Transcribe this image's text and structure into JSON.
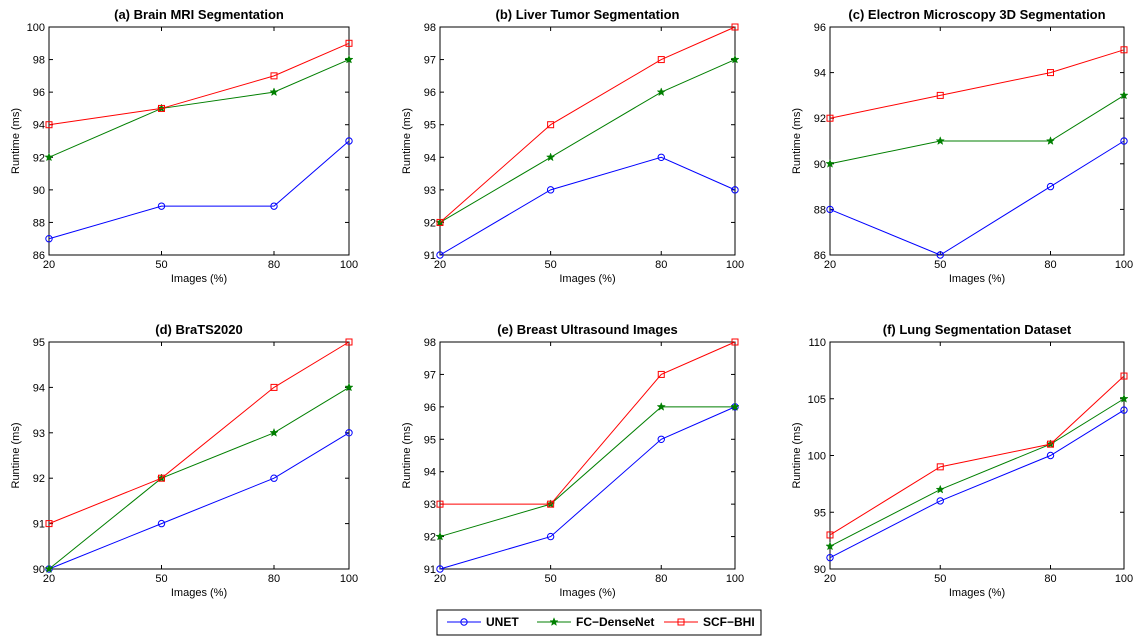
{
  "chart_data": [
    {
      "type": "line",
      "title": "(a) Brain MRI Segmentation",
      "xlabel": "Images (%)",
      "ylabel": "Runtime (ms)",
      "x": [
        20,
        50,
        80,
        100
      ],
      "xticks": [
        20,
        50,
        80,
        100
      ],
      "ylim": [
        86,
        100
      ],
      "yticks": [
        86,
        88,
        90,
        92,
        94,
        96,
        98,
        100
      ],
      "grid": false,
      "series": [
        {
          "name": "UNET",
          "values": [
            87,
            89,
            89,
            93
          ]
        },
        {
          "name": "FC−DenseNet",
          "values": [
            92,
            95,
            96,
            98
          ]
        },
        {
          "name": "SCF−BHI",
          "values": [
            94,
            95,
            97,
            99
          ]
        }
      ]
    },
    {
      "type": "line",
      "title": "(b) Liver Tumor Segmentation",
      "xlabel": "Images (%)",
      "ylabel": "Runtime (ms)",
      "x": [
        20,
        50,
        80,
        100
      ],
      "xticks": [
        20,
        50,
        80,
        100
      ],
      "ylim": [
        91,
        98
      ],
      "yticks": [
        91,
        92,
        93,
        94,
        95,
        96,
        97,
        98
      ],
      "grid": false,
      "series": [
        {
          "name": "UNET",
          "values": [
            91,
            93,
            94,
            93
          ]
        },
        {
          "name": "FC−DenseNet",
          "values": [
            92,
            94,
            96,
            97
          ]
        },
        {
          "name": "SCF−BHI",
          "values": [
            92,
            95,
            97,
            98
          ]
        }
      ]
    },
    {
      "type": "line",
      "title": "(c) Electron Microscopy 3D Segmentation",
      "xlabel": "Images (%)",
      "ylabel": "Runtime (ms)",
      "x": [
        20,
        50,
        80,
        100
      ],
      "xticks": [
        20,
        50,
        80,
        100
      ],
      "ylim": [
        86,
        96
      ],
      "yticks": [
        86,
        88,
        90,
        92,
        94,
        96
      ],
      "grid": false,
      "series": [
        {
          "name": "UNET",
          "values": [
            88,
            86,
            89,
            91
          ]
        },
        {
          "name": "FC−DenseNet",
          "values": [
            90,
            91,
            91,
            93
          ]
        },
        {
          "name": "SCF−BHI",
          "values": [
            92,
            93,
            94,
            95
          ]
        }
      ]
    },
    {
      "type": "line",
      "title": "(d) BraTS2020",
      "xlabel": "Images (%)",
      "ylabel": "Runtime (ms)",
      "x": [
        20,
        50,
        80,
        100
      ],
      "xticks": [
        20,
        50,
        80,
        100
      ],
      "ylim": [
        90,
        95
      ],
      "yticks": [
        90,
        91,
        92,
        93,
        94,
        95
      ],
      "grid": false,
      "series": [
        {
          "name": "UNET",
          "values": [
            90,
            91,
            92,
            93
          ]
        },
        {
          "name": "FC−DenseNet",
          "values": [
            90,
            92,
            93,
            94
          ]
        },
        {
          "name": "SCF−BHI",
          "values": [
            91,
            92,
            94,
            95
          ]
        }
      ]
    },
    {
      "type": "line",
      "title": "(e) Breast Ultrasound Images",
      "xlabel": "Images (%)",
      "ylabel": "Runtime (ms)",
      "x": [
        20,
        50,
        80,
        100
      ],
      "xticks": [
        20,
        50,
        80,
        100
      ],
      "ylim": [
        91,
        98
      ],
      "yticks": [
        91,
        92,
        93,
        94,
        95,
        96,
        97,
        98
      ],
      "grid": false,
      "series": [
        {
          "name": "UNET",
          "values": [
            91,
            92,
            95,
            96
          ]
        },
        {
          "name": "FC−DenseNet",
          "values": [
            92,
            93,
            96,
            96
          ]
        },
        {
          "name": "SCF−BHI",
          "values": [
            93,
            93,
            97,
            98
          ]
        }
      ]
    },
    {
      "type": "line",
      "title": "(f) Lung Segmentation Dataset",
      "xlabel": "Images (%)",
      "ylabel": "Runtime (ms)",
      "x": [
        20,
        50,
        80,
        100
      ],
      "xticks": [
        20,
        50,
        80,
        100
      ],
      "ylim": [
        90,
        110
      ],
      "yticks": [
        90,
        95,
        100,
        105,
        110
      ],
      "grid": false,
      "series": [
        {
          "name": "UNET",
          "values": [
            91,
            96,
            100,
            104
          ]
        },
        {
          "name": "FC−DenseNet",
          "values": [
            92,
            97,
            101,
            105
          ]
        },
        {
          "name": "SCF−BHI",
          "values": [
            93,
            99,
            101,
            107
          ]
        }
      ]
    }
  ],
  "legend": {
    "placement": "bottom-center",
    "items": [
      {
        "label": "UNET",
        "color": "#0000ff",
        "marker": "circle-icon"
      },
      {
        "label": "FC−DenseNet",
        "color": "#007f00",
        "marker": "star-icon"
      },
      {
        "label": "SCF−BHI",
        "color": "#ff0000",
        "marker": "square-icon"
      }
    ]
  },
  "series_colors": [
    "#0000ff",
    "#007f00",
    "#ff0000"
  ]
}
